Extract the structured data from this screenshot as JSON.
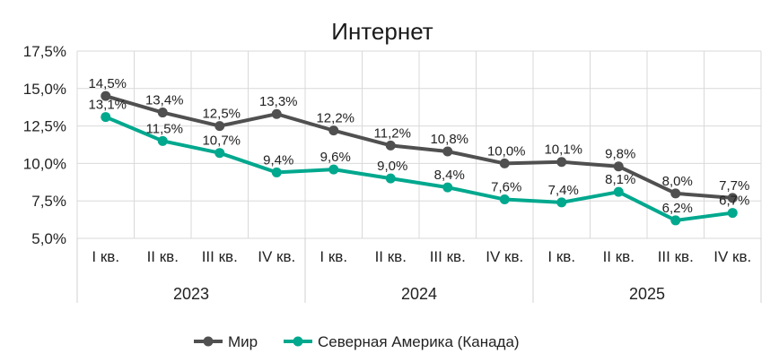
{
  "chart_data": {
    "type": "line",
    "title": "Интернет",
    "xlabel": "",
    "ylabel": "",
    "ylim": [
      5.0,
      17.5
    ],
    "yticks": [
      "5,0%",
      "7,5%",
      "10,0%",
      "12,5%",
      "15,0%",
      "17,5%"
    ],
    "grid": true,
    "legend_position": "bottom",
    "categories": [
      "I кв.",
      "II кв.",
      "III кв.",
      "IV кв.",
      "I кв.",
      "II кв.",
      "III кв.",
      "IV кв.",
      "I кв.",
      "II кв.",
      "III кв.",
      "IV кв."
    ],
    "groups": [
      {
        "label": "2023",
        "count": 4
      },
      {
        "label": "2024",
        "count": 4
      },
      {
        "label": "2025",
        "count": 4
      }
    ],
    "series": [
      {
        "name": "Мир",
        "color": "#505050",
        "values": [
          14.5,
          13.4,
          12.5,
          13.3,
          12.2,
          11.2,
          10.8,
          10.0,
          10.1,
          9.8,
          8.0,
          7.7
        ],
        "labels": [
          "14,5%",
          "13,4%",
          "12,5%",
          "13,3%",
          "12,2%",
          "11,2%",
          "10,8%",
          "10,0%",
          "10,1%",
          "9,8%",
          "8,0%",
          "7,7%"
        ]
      },
      {
        "name": "Северная Америка (Канада)",
        "color": "#00A88E",
        "values": [
          13.1,
          11.5,
          10.7,
          9.4,
          9.6,
          9.0,
          8.4,
          7.6,
          7.4,
          8.1,
          6.2,
          6.7
        ],
        "labels": [
          "13,1%",
          "11,5%",
          "10,7%",
          "9,4%",
          "9,6%",
          "9,0%",
          "8,4%",
          "7,6%",
          "7,4%",
          "8,1%",
          "6,2%",
          "6,7%"
        ]
      }
    ]
  }
}
